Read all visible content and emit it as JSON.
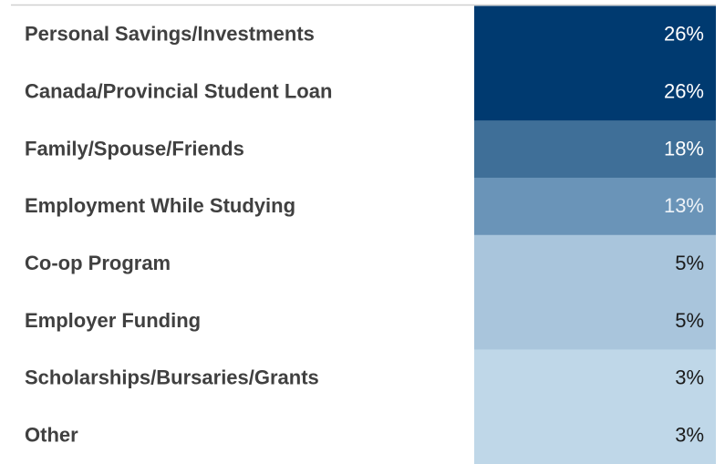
{
  "chart_data": {
    "type": "table",
    "categories": [
      "Personal Savings/Investments",
      "Canada/Provincial Student Loan",
      "Family/Spouse/Friends",
      "Employment While Studying",
      "Co-op Program",
      "Employer Funding",
      "Scholarships/Bursaries/Grants",
      "Other"
    ],
    "values": [
      26,
      26,
      18,
      13,
      5,
      5,
      3,
      3
    ],
    "value_labels": [
      "26%",
      "26%",
      "18%",
      "13%",
      "5%",
      "5%",
      "3%",
      "3%"
    ],
    "colors": [
      "#003a70",
      "#003a70",
      "#3f6f98",
      "#6a94b8",
      "#a9c5dc",
      "#a9c5dc",
      "#bfd7e8",
      "#bfd7e8"
    ]
  }
}
